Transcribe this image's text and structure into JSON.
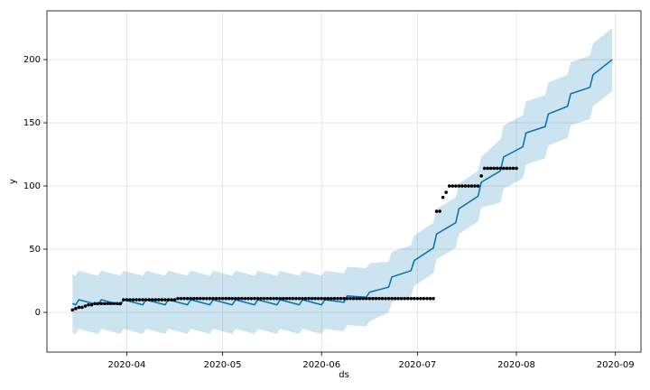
{
  "chart_data": {
    "type": "line",
    "x_label": "ds",
    "y_label": "y",
    "grid": true,
    "xlim": [
      67,
      253
    ],
    "ylim": [
      -31.4,
      238.6
    ],
    "yticks": [
      0,
      50,
      100,
      150,
      200
    ],
    "xticks": [
      {
        "value": 92,
        "label": "2020-04"
      },
      {
        "value": 122,
        "label": "2020-05"
      },
      {
        "value": 153,
        "label": "2020-06"
      },
      {
        "value": 183,
        "label": "2020-07"
      },
      {
        "value": 214,
        "label": "2020-08"
      },
      {
        "value": 245,
        "label": "2020-09"
      }
    ],
    "points": {
      "color": "#000000",
      "x": [
        75,
        76,
        77,
        78,
        79,
        80,
        81,
        82,
        83,
        84,
        85,
        86,
        87,
        88,
        89,
        90,
        91,
        92,
        93,
        94,
        95,
        96,
        97,
        98,
        99,
        100,
        101,
        102,
        103,
        104,
        105,
        106,
        107,
        108,
        109,
        110,
        111,
        112,
        113,
        114,
        115,
        116,
        117,
        118,
        119,
        120,
        121,
        122,
        123,
        124,
        125,
        126,
        127,
        128,
        129,
        130,
        131,
        132,
        133,
        134,
        135,
        136,
        137,
        138,
        139,
        140,
        141,
        142,
        143,
        144,
        145,
        146,
        147,
        148,
        149,
        150,
        151,
        152,
        153,
        154,
        155,
        156,
        157,
        158,
        159,
        160,
        161,
        162,
        163,
        164,
        165,
        166,
        167,
        168,
        169,
        170,
        171,
        172,
        173,
        174,
        175,
        176,
        177,
        178,
        179,
        180,
        181,
        182,
        183,
        184,
        185,
        186,
        187,
        188,
        189,
        190,
        191,
        192,
        193,
        194,
        195,
        196,
        197,
        198,
        199,
        200,
        201,
        202,
        203,
        204,
        205,
        206,
        207,
        208,
        209,
        210,
        211,
        212,
        213,
        214
      ],
      "y": [
        2,
        3,
        4,
        4,
        5,
        6,
        6,
        7,
        7,
        7,
        7,
        7,
        7,
        7,
        7,
        7,
        10,
        10,
        10,
        10,
        10,
        10,
        10,
        10,
        10,
        10,
        10,
        10,
        10,
        10,
        10,
        10,
        10,
        11,
        11,
        11,
        11,
        11,
        11,
        11,
        11,
        11,
        11,
        11,
        11,
        11,
        11,
        11,
        11,
        11,
        11,
        11,
        11,
        11,
        11,
        11,
        11,
        11,
        11,
        11,
        11,
        11,
        11,
        11,
        11,
        11,
        11,
        11,
        11,
        11,
        11,
        11,
        11,
        11,
        11,
        11,
        11,
        11,
        11,
        11,
        11,
        11,
        11,
        11,
        11,
        11,
        11,
        11,
        11,
        11,
        11,
        11,
        11,
        11,
        11,
        11,
        11,
        11,
        11,
        11,
        11,
        11,
        11,
        11,
        11,
        11,
        11,
        11,
        11,
        11,
        11,
        11,
        11,
        11,
        80,
        80,
        91,
        95,
        100,
        100,
        100,
        100,
        100,
        100,
        100,
        100,
        100,
        100,
        108,
        114,
        114,
        114,
        114,
        114,
        114,
        114,
        114,
        114,
        114,
        114
      ]
    },
    "forecast": {
      "color": "#0072b2",
      "x": [
        75,
        76,
        77,
        83,
        84,
        90,
        91,
        97,
        98,
        104,
        105,
        111,
        112,
        118,
        119,
        125,
        126,
        132,
        133,
        139,
        140,
        146,
        147,
        153,
        154,
        160,
        161,
        167,
        168,
        174,
        175,
        181,
        182,
        188,
        189,
        195,
        196,
        202,
        203,
        209,
        210,
        216,
        217,
        223,
        224,
        230,
        231,
        237,
        238,
        244
      ],
      "values": [
        7,
        6,
        10,
        6,
        10,
        6,
        10,
        6,
        10,
        6,
        10,
        6,
        10,
        6,
        10,
        6,
        10,
        6,
        10,
        6,
        10,
        6,
        10,
        6,
        10,
        8,
        13,
        12,
        16,
        20,
        28,
        33,
        41,
        51,
        62,
        71,
        82,
        92,
        103,
        112,
        123,
        131,
        142,
        147,
        157,
        163,
        173,
        178,
        188,
        200
      ],
      "lower": [
        -16,
        -17,
        -13,
        -17,
        -13,
        -17,
        -13,
        -17,
        -13,
        -17,
        -13,
        -17,
        -13,
        -17,
        -13,
        -17,
        -13,
        -17,
        -13,
        -17,
        -13,
        -17,
        -13,
        -17,
        -13,
        -15,
        -10,
        -11,
        -7,
        0,
        8,
        13,
        21,
        31,
        42,
        51,
        62,
        72,
        83,
        87,
        98,
        106,
        117,
        122,
        132,
        138,
        148,
        153,
        163,
        175
      ],
      "upper": [
        30,
        29,
        33,
        29,
        33,
        29,
        33,
        29,
        33,
        29,
        33,
        29,
        33,
        29,
        33,
        29,
        33,
        29,
        33,
        29,
        33,
        29,
        33,
        29,
        33,
        31,
        36,
        35,
        39,
        40,
        48,
        53,
        61,
        71,
        82,
        91,
        102,
        112,
        123,
        137,
        148,
        156,
        167,
        172,
        182,
        188,
        198,
        203,
        213,
        225
      ]
    }
  }
}
